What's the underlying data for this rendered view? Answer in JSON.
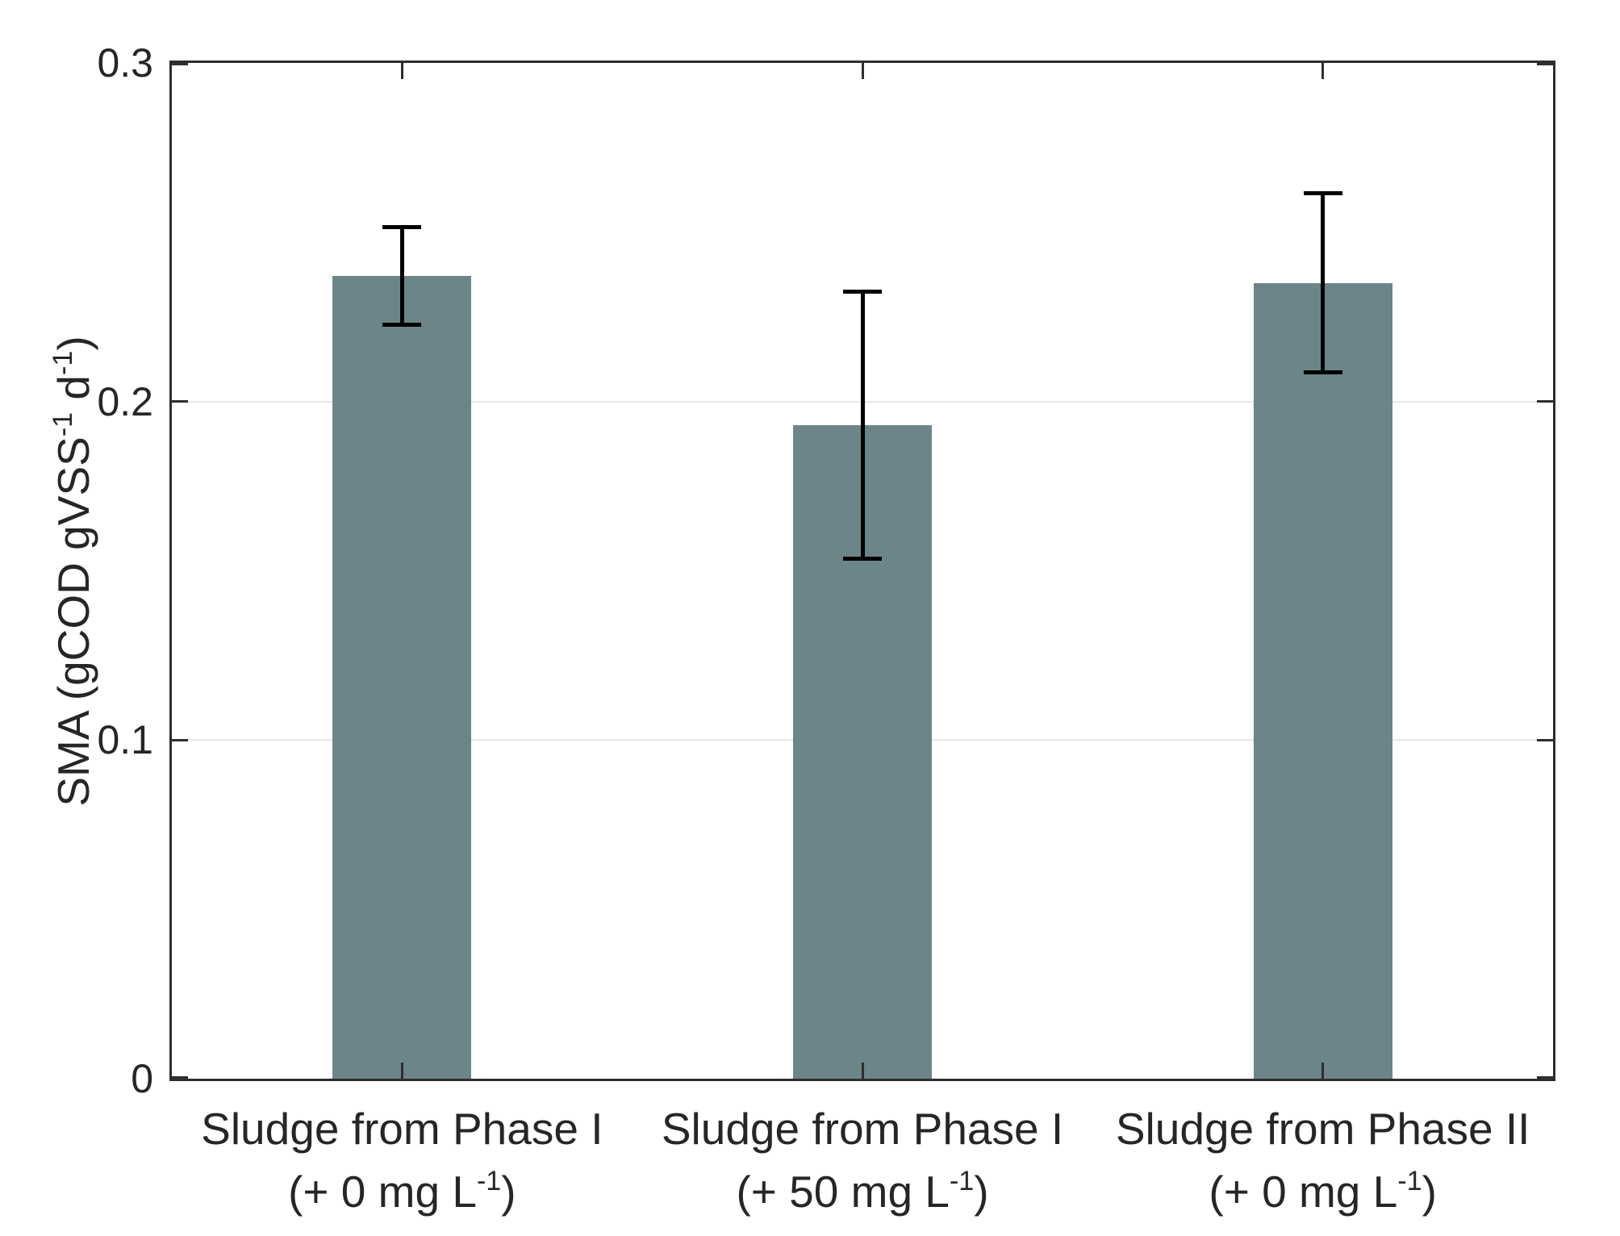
{
  "figure": {
    "background": "#ffffff",
    "colors": {
      "bar": "#6C8589",
      "axis_frame": "#2e2e2e",
      "gridline": "#e7e7e7",
      "error_bar": "#000000",
      "text": "#262626"
    }
  },
  "chart_data": {
    "type": "bar",
    "title": "",
    "xlabel": "",
    "ylabel": "SMA (gCOD gVSS⁻¹ d⁻¹)",
    "ylim": [
      0,
      0.3
    ],
    "yticks": [
      {
        "value": 0,
        "label": "0"
      },
      {
        "value": 0.1,
        "label": "0.1"
      },
      {
        "value": 0.2,
        "label": "0.2"
      },
      {
        "value": 0.3,
        "label": "0.3"
      }
    ],
    "gridlines_at": [
      0.1,
      0.2
    ],
    "grid": "horizontal",
    "legend_position": "none",
    "bar_color": "#6C8589",
    "categories": [
      "Sludge from Phase I (+ 0 mg L⁻¹)",
      "Sludge from Phase I (+ 50 mg L⁻¹)",
      "Sludge from Phase II (+ 0 mg L⁻¹)"
    ],
    "values": [
      0.237,
      0.193,
      0.235
    ],
    "error_bars_plus_minus": [
      0.015,
      0.04,
      0.027
    ],
    "render": {
      "ylabel_segments": [
        {
          "t": "SMA (gCOD gVSS",
          "sup": false
        },
        {
          "t": "-1",
          "sup": true
        },
        {
          "t": " d",
          "sup": false
        },
        {
          "t": "-1",
          "sup": true
        },
        {
          "t": ")",
          "sup": false
        }
      ],
      "category_labels": [
        {
          "line1": "Sludge from Phase I",
          "line2_segments": [
            {
              "t": "(+ 0 mg L",
              "sup": false
            },
            {
              "t": "-1",
              "sup": true
            },
            {
              "t": ")",
              "sup": false
            }
          ]
        },
        {
          "line1": "Sludge from Phase I",
          "line2_segments": [
            {
              "t": "(+ 50 mg L",
              "sup": false
            },
            {
              "t": "-1",
              "sup": true
            },
            {
              "t": ")",
              "sup": false
            }
          ]
        },
        {
          "line1": "Sludge from Phase II",
          "line2_segments": [
            {
              "t": "(+ 0 mg L",
              "sup": false
            },
            {
              "t": "-1",
              "sup": true
            },
            {
              "t": ")",
              "sup": false
            }
          ]
        }
      ]
    }
  }
}
